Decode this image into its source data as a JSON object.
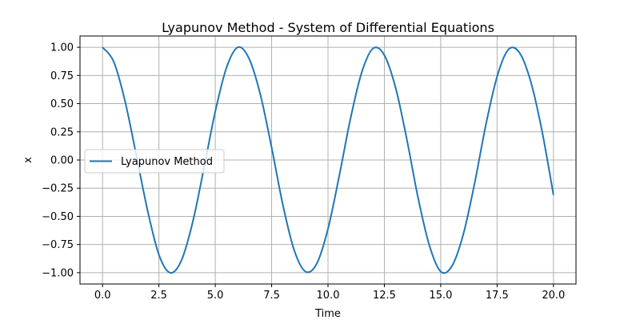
{
  "chart_data": {
    "type": "line",
    "title": "Lyapunov Method - System of Differential Equations",
    "xlabel": "Time",
    "ylabel": "x",
    "xlim": [
      -1.0,
      21.0
    ],
    "ylim": [
      -1.1,
      1.1
    ],
    "xticks": [
      0.0,
      2.5,
      5.0,
      7.5,
      10.0,
      12.5,
      15.0,
      17.5,
      20.0
    ],
    "xtick_labels": [
      "0.0",
      "2.5",
      "5.0",
      "7.5",
      "10.0",
      "12.5",
      "15.0",
      "17.5",
      "20.0"
    ],
    "yticks": [
      -1.0,
      -0.75,
      -0.5,
      -0.25,
      0.0,
      0.25,
      0.5,
      0.75,
      1.0
    ],
    "ytick_labels": [
      "−1.00",
      "−0.75",
      "−0.50",
      "−0.25",
      "0.00",
      "0.25",
      "0.50",
      "0.75",
      "1.00"
    ],
    "grid": true,
    "legend_position": "center-left",
    "series": [
      {
        "name": "Lyapunov Method",
        "color": "#1f77b4",
        "x": [
          0,
          0.5,
          1,
          1.5,
          2,
          2.5,
          3,
          3.5,
          4,
          4.5,
          5,
          5.5,
          6,
          6.5,
          7,
          7.5,
          8,
          8.5,
          9,
          9.5,
          10,
          10.5,
          11,
          11.5,
          12,
          12.5,
          13,
          13.5,
          14,
          14.5,
          15,
          15.5,
          16,
          16.5,
          17,
          17.5,
          18,
          18.5,
          19,
          19.5,
          20
        ],
        "y": [
          1.0,
          0.87,
          0.52,
          0.04,
          -0.45,
          -0.84,
          -1.0,
          -0.89,
          -0.55,
          -0.07,
          0.43,
          0.82,
          1.0,
          0.9,
          0.58,
          0.11,
          -0.4,
          -0.8,
          -0.99,
          -0.92,
          -0.61,
          -0.14,
          0.37,
          0.78,
          0.99,
          0.93,
          0.64,
          0.18,
          -0.34,
          -0.76,
          -0.99,
          -0.94,
          -0.66,
          -0.21,
          0.31,
          0.74,
          0.98,
          0.95,
          0.69,
          0.25,
          -0.31
        ]
      }
    ]
  }
}
